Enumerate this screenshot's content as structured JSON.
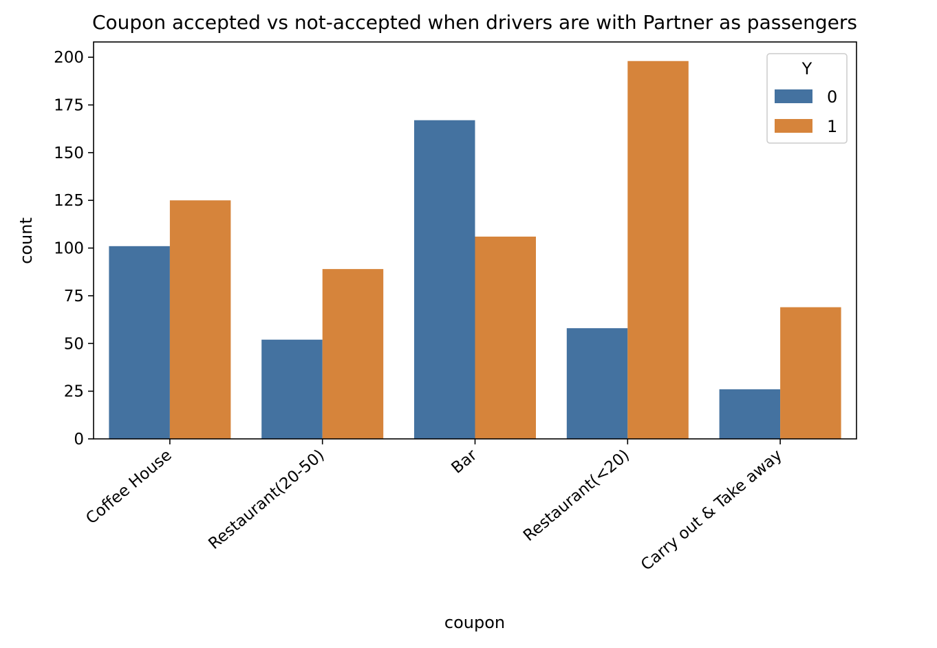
{
  "chart_data": {
    "type": "bar",
    "title": "Coupon accepted vs not-accepted when drivers are with Partner as passengers",
    "xlabel": "coupon",
    "ylabel": "count",
    "categories": [
      "Coffee House",
      "Restaurant(20-50)",
      "Bar",
      "Restaurant(<20)",
      "Carry out & Take away"
    ],
    "series": [
      {
        "name": "0",
        "color": "#4472a0",
        "values": [
          101,
          52,
          167,
          58,
          26
        ]
      },
      {
        "name": "1",
        "color": "#d6843b",
        "values": [
          125,
          89,
          106,
          198,
          69
        ]
      }
    ],
    "ylim": [
      0,
      208
    ],
    "yticks": [
      0,
      25,
      50,
      75,
      100,
      125,
      150,
      175,
      200
    ],
    "legend": {
      "title": "Y",
      "placement": "top-right"
    },
    "grid": false
  }
}
